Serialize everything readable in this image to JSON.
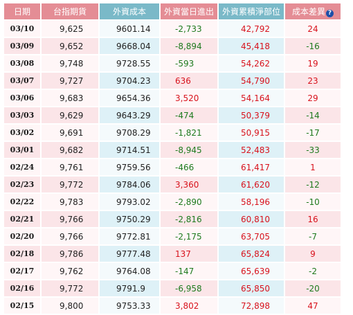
{
  "headers": {
    "date": "日期",
    "futures": "台指期貨",
    "cost": "外資成本",
    "net": "外資當日進出",
    "position": "外資累積淨部位",
    "diff": "成本差異"
  },
  "help_icon_glyph": "?",
  "colors": {
    "up": "#d8121c",
    "down": "#1e7a1e"
  },
  "rows": [
    {
      "date": "03/10",
      "futures": "9,625",
      "cost": "9601.14",
      "net": "-2,733",
      "position": "42,792",
      "diff": "24"
    },
    {
      "date": "03/09",
      "futures": "9,652",
      "cost": "9668.04",
      "net": "-8,894",
      "position": "45,418",
      "diff": "-16"
    },
    {
      "date": "03/08",
      "futures": "9,748",
      "cost": "9728.55",
      "net": "-593",
      "position": "54,262",
      "diff": "19"
    },
    {
      "date": "03/07",
      "futures": "9,727",
      "cost": "9704.23",
      "net": "636",
      "position": "54,790",
      "diff": "23"
    },
    {
      "date": "03/06",
      "futures": "9,683",
      "cost": "9654.36",
      "net": "3,520",
      "position": "54,164",
      "diff": "29"
    },
    {
      "date": "03/03",
      "futures": "9,629",
      "cost": "9643.29",
      "net": "-474",
      "position": "50,379",
      "diff": "-14"
    },
    {
      "date": "03/02",
      "futures": "9,691",
      "cost": "9708.29",
      "net": "-1,821",
      "position": "50,915",
      "diff": "-17"
    },
    {
      "date": "03/01",
      "futures": "9,682",
      "cost": "9714.51",
      "net": "-8,945",
      "position": "52,483",
      "diff": "-33"
    },
    {
      "date": "02/24",
      "futures": "9,761",
      "cost": "9759.56",
      "net": "-466",
      "position": "61,417",
      "diff": "1"
    },
    {
      "date": "02/23",
      "futures": "9,772",
      "cost": "9784.06",
      "net": "3,360",
      "position": "61,620",
      "diff": "-12"
    },
    {
      "date": "02/22",
      "futures": "9,783",
      "cost": "9793.02",
      "net": "-2,890",
      "position": "58,196",
      "diff": "-10"
    },
    {
      "date": "02/21",
      "futures": "9,766",
      "cost": "9750.29",
      "net": "-2,816",
      "position": "60,810",
      "diff": "16"
    },
    {
      "date": "02/20",
      "futures": "9,766",
      "cost": "9772.81",
      "net": "-2,175",
      "position": "63,705",
      "diff": "-7"
    },
    {
      "date": "02/18",
      "futures": "9,786",
      "cost": "9777.48",
      "net": "137",
      "position": "65,824",
      "diff": "9"
    },
    {
      "date": "02/17",
      "futures": "9,762",
      "cost": "9764.08",
      "net": "-147",
      "position": "65,639",
      "diff": "-2"
    },
    {
      "date": "02/16",
      "futures": "9,772",
      "cost": "9791.9",
      "net": "-6,958",
      "position": "65,850",
      "diff": "-20"
    },
    {
      "date": "02/15",
      "futures": "9,800",
      "cost": "9753.33",
      "net": "3,802",
      "position": "72,898",
      "diff": "47"
    }
  ]
}
